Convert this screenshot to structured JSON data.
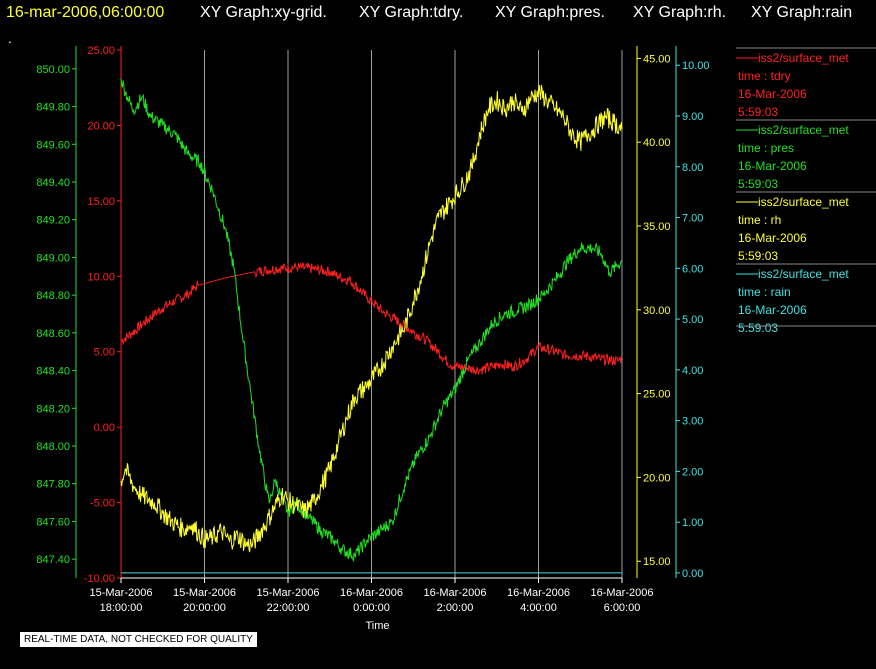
{
  "header": {
    "timestamp": "16-mar-2006,06:00:00",
    "tabs": [
      "XY Graph:xy-grid.",
      "XY Graph:tdry.",
      "XY Graph:pres.",
      "XY Graph:rh.",
      "XY Graph:rain"
    ],
    "dot": "."
  },
  "footer_note": "REAL-TIME DATA, NOT CHECKED FOR QUALITY",
  "colors": {
    "tdry": "#ff2020",
    "pres": "#20e020",
    "rh": "#ffff30",
    "rain": "#40e0e0",
    "grid": "#c8c8c8",
    "background": "#000000"
  },
  "chart_data": {
    "type": "line",
    "xlabel": "Time",
    "x_ticks": [
      {
        "date": "15-Mar-2006",
        "time": "18:00:00"
      },
      {
        "date": "15-Mar-2006",
        "time": "20:00:00"
      },
      {
        "date": "15-Mar-2006",
        "time": "22:00:00"
      },
      {
        "date": "16-Mar-2006",
        "time": "0:00:00"
      },
      {
        "date": "16-Mar-2006",
        "time": "2:00:00"
      },
      {
        "date": "16-Mar-2006",
        "time": "4:00:00"
      },
      {
        "date": "16-Mar-2006",
        "time": "6:00:00"
      }
    ],
    "x_range": [
      "15-Mar-2006 18:00:00",
      "16-Mar-2006 6:00:00"
    ],
    "grid": "vertical",
    "axes": {
      "pres": {
        "min": 847.3,
        "max": 850.1,
        "ticks": [
          "847.40",
          "847.60",
          "847.80",
          "848.00",
          "848.20",
          "848.40",
          "848.60",
          "848.80",
          "849.00",
          "849.20",
          "849.40",
          "849.60",
          "849.80",
          "850.00"
        ]
      },
      "tdry": {
        "min": -10,
        "max": 25,
        "ticks": [
          "-10.00",
          "-5.00",
          "0.00",
          "5.00",
          "10.00",
          "15.00",
          "20.00",
          "25.00"
        ]
      },
      "rh": {
        "min": 14,
        "max": 45.5,
        "ticks": [
          "15.00",
          "20.00",
          "25.00",
          "30.00",
          "35.00",
          "40.00",
          "45.00"
        ]
      },
      "rain": {
        "min": -0.1,
        "max": 10.3,
        "ticks": [
          "0.00",
          "1.00",
          "2.00",
          "3.00",
          "4.00",
          "5.00",
          "6.00",
          "7.00",
          "8.00",
          "9.00",
          "10.00"
        ]
      }
    },
    "legend": [
      {
        "name": "iss2/surface_met",
        "label": "time : tdry",
        "date": "16-Mar-2006",
        "time": "5:59:03",
        "color": "#ff2020"
      },
      {
        "name": "iss2/surface_met",
        "label": "time : pres",
        "date": "16-Mar-2006",
        "time": "5:59:03",
        "color": "#20e020"
      },
      {
        "name": "iss2/surface_met",
        "label": "time : rh",
        "date": "16-Mar-2006",
        "time": "5:59:03",
        "color": "#ffff30"
      },
      {
        "name": "iss2/surface_met",
        "label": "time : rain",
        "date": "16-Mar-2006",
        "time": "5:59:03",
        "color": "#40e0e0"
      }
    ],
    "legend_placement": "right",
    "series": [
      {
        "key": "tdry",
        "axis": "tdry",
        "noise": 0.35,
        "points": [
          [
            0,
            5.7
          ],
          [
            0.25,
            6.2
          ],
          [
            0.5,
            6.8
          ],
          [
            0.8,
            7.5
          ],
          [
            1.0,
            7.9
          ],
          [
            1.3,
            8.4
          ],
          [
            1.6,
            8.8
          ],
          [
            1.75,
            9.2
          ],
          [
            1.85,
            9.4
          ],
          [
            2.5,
            9.9
          ],
          [
            3.2,
            10.3
          ],
          [
            3.7,
            10.5
          ],
          [
            4.2,
            10.6
          ],
          [
            4.6,
            10.5
          ],
          [
            5.0,
            10.3
          ],
          [
            5.2,
            10.0
          ],
          [
            5.5,
            9.7
          ],
          [
            5.9,
            8.6
          ],
          [
            6.3,
            7.6
          ],
          [
            6.7,
            6.9
          ],
          [
            7.0,
            6.3
          ],
          [
            7.3,
            5.8
          ],
          [
            7.6,
            5.0
          ],
          [
            7.9,
            4.1
          ],
          [
            8.3,
            3.9
          ],
          [
            8.6,
            3.8
          ],
          [
            8.9,
            4.0
          ],
          [
            9.1,
            4.2
          ],
          [
            9.4,
            4.0
          ],
          [
            9.7,
            4.5
          ],
          [
            10.0,
            5.3
          ],
          [
            10.3,
            5.1
          ],
          [
            10.6,
            4.8
          ],
          [
            11.2,
            4.7
          ],
          [
            11.5,
            4.5
          ],
          [
            11.9,
            4.4
          ],
          [
            12.0,
            4.6
          ]
        ]
      },
      {
        "key": "pres",
        "axis": "pres",
        "noise": 0.035,
        "points": [
          [
            0,
            849.95
          ],
          [
            0.15,
            849.85
          ],
          [
            0.3,
            849.78
          ],
          [
            0.5,
            849.85
          ],
          [
            0.7,
            849.75
          ],
          [
            1.0,
            849.7
          ],
          [
            1.3,
            849.65
          ],
          [
            1.6,
            849.55
          ],
          [
            1.9,
            849.5
          ],
          [
            2.2,
            849.35
          ],
          [
            2.5,
            849.15
          ],
          [
            2.7,
            848.95
          ],
          [
            2.9,
            848.6
          ],
          [
            3.1,
            848.3
          ],
          [
            3.3,
            848.0
          ],
          [
            3.5,
            847.75
          ],
          [
            3.55,
            847.7
          ],
          [
            3.7,
            847.82
          ],
          [
            3.85,
            847.72
          ],
          [
            4.0,
            847.65
          ],
          [
            4.2,
            847.7
          ],
          [
            4.5,
            847.62
          ],
          [
            4.8,
            847.55
          ],
          [
            5.1,
            847.5
          ],
          [
            5.3,
            847.45
          ],
          [
            5.6,
            847.42
          ],
          [
            5.9,
            847.5
          ],
          [
            6.2,
            847.55
          ],
          [
            6.5,
            847.6
          ],
          [
            6.8,
            847.8
          ],
          [
            7.1,
            847.95
          ],
          [
            7.4,
            848.05
          ],
          [
            7.7,
            848.2
          ],
          [
            8.0,
            848.3
          ],
          [
            8.3,
            848.45
          ],
          [
            8.6,
            848.55
          ],
          [
            8.9,
            848.65
          ],
          [
            9.2,
            848.7
          ],
          [
            9.5,
            848.72
          ],
          [
            9.8,
            848.75
          ],
          [
            10.1,
            848.8
          ],
          [
            10.4,
            848.88
          ],
          [
            10.7,
            848.98
          ],
          [
            11.0,
            849.05
          ],
          [
            11.3,
            849.05
          ],
          [
            11.5,
            849.02
          ],
          [
            11.7,
            848.92
          ],
          [
            11.85,
            848.95
          ],
          [
            12.0,
            848.98
          ]
        ]
      },
      {
        "key": "rh",
        "axis": "rh",
        "noise": 0.6,
        "points": [
          [
            0,
            19.8
          ],
          [
            0.1,
            20.5
          ],
          [
            0.3,
            19.5
          ],
          [
            0.5,
            18.9
          ],
          [
            0.8,
            18.5
          ],
          [
            1.0,
            17.9
          ],
          [
            1.2,
            17.4
          ],
          [
            1.5,
            16.9
          ],
          [
            1.7,
            17.2
          ],
          [
            1.85,
            16.7
          ],
          [
            2.0,
            16.3
          ],
          [
            2.2,
            16.4
          ],
          [
            2.4,
            16.8
          ],
          [
            2.6,
            16.2
          ],
          [
            2.8,
            16.5
          ],
          [
            3.0,
            16.0
          ],
          [
            3.15,
            16.0
          ],
          [
            3.5,
            17.4
          ],
          [
            3.85,
            19.0
          ],
          [
            4.0,
            18.6
          ],
          [
            4.2,
            18.3
          ],
          [
            4.4,
            18.0
          ],
          [
            4.6,
            18.5
          ],
          [
            4.8,
            19.5
          ],
          [
            5.0,
            20.5
          ],
          [
            5.2,
            22.0
          ],
          [
            5.4,
            23.5
          ],
          [
            5.6,
            24.8
          ],
          [
            5.9,
            25.5
          ],
          [
            6.2,
            26.5
          ],
          [
            6.5,
            27.8
          ],
          [
            6.8,
            29.0
          ],
          [
            7.0,
            30.5
          ],
          [
            7.2,
            32.0
          ],
          [
            7.4,
            34.0
          ],
          [
            7.6,
            35.5
          ],
          [
            7.9,
            36.5
          ],
          [
            8.2,
            37.5
          ],
          [
            8.4,
            38.5
          ],
          [
            8.6,
            40.5
          ],
          [
            8.8,
            42.0
          ],
          [
            9.0,
            42.5
          ],
          [
            9.2,
            42.0
          ],
          [
            9.4,
            42.5
          ],
          [
            9.6,
            41.8
          ],
          [
            9.8,
            42.6
          ],
          [
            10.0,
            43.0
          ],
          [
            10.2,
            42.5
          ],
          [
            10.4,
            42.0
          ],
          [
            10.6,
            41.5
          ],
          [
            10.8,
            40.5
          ],
          [
            11.0,
            40.0
          ],
          [
            11.2,
            40.5
          ],
          [
            11.4,
            41.0
          ],
          [
            11.6,
            41.5
          ],
          [
            11.8,
            41.2
          ],
          [
            12.0,
            40.8
          ]
        ]
      },
      {
        "key": "rain",
        "axis": "rain",
        "noise": 0,
        "points": [
          [
            0,
            0.0
          ],
          [
            12.0,
            0.0
          ]
        ]
      }
    ]
  }
}
